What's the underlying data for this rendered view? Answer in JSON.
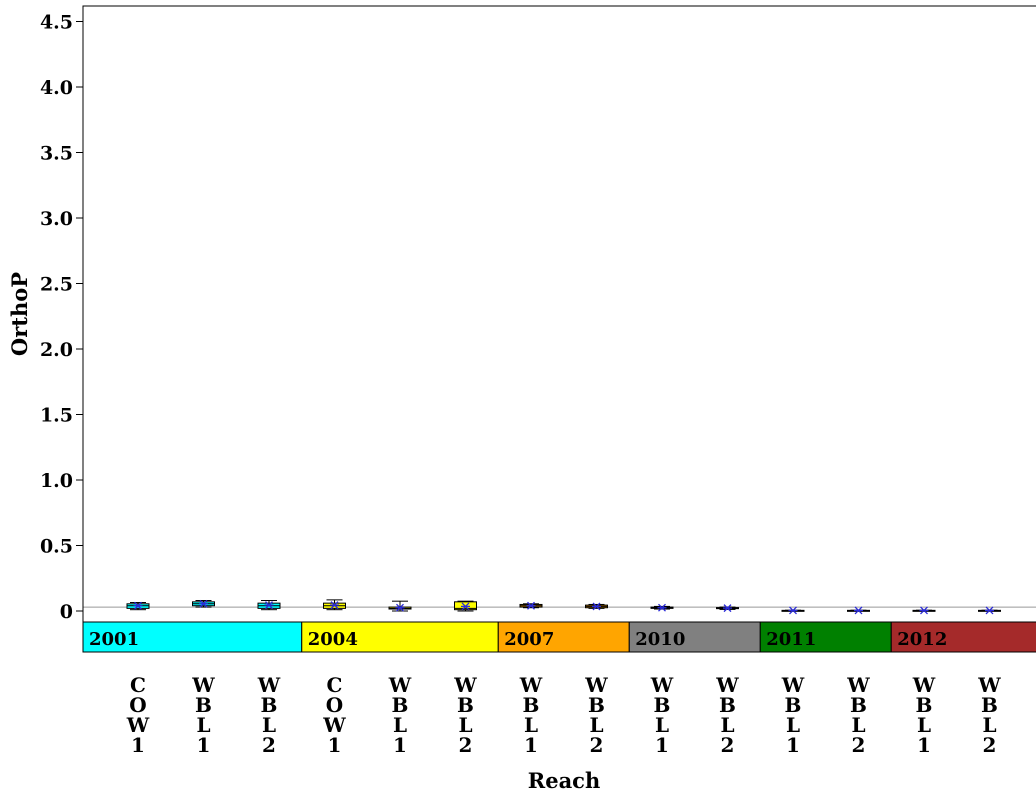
{
  "chart_data": {
    "type": "box",
    "ylabel": "OrthoP",
    "xlabel": "Reach",
    "ylim": [
      -0.3,
      4.6
    ],
    "y_ticks": [
      "4.5",
      "4.0",
      "3.5",
      "3.0",
      "2.5",
      "2.0",
      "1.5",
      "1.0",
      "0.5",
      "0"
    ],
    "y_tick_values": [
      4.5,
      4.0,
      3.5,
      3.0,
      2.5,
      2.0,
      1.5,
      1.0,
      0.5,
      0.0
    ],
    "reference_line": 0.03,
    "categories": [
      "COW1",
      "WBL1",
      "WBL2",
      "COW1",
      "WBL1",
      "WBL2",
      "WBL1",
      "WBL2",
      "WBL1",
      "WBL2",
      "WBL1",
      "WBL2",
      "WBL1",
      "WBL2"
    ],
    "groups": [
      {
        "year": "2001",
        "color": "#00ffff",
        "count": 3
      },
      {
        "year": "2004",
        "color": "#ffff00",
        "count": 3
      },
      {
        "year": "2007",
        "color": "#ffa500",
        "count": 2
      },
      {
        "year": "2010",
        "color": "#808080",
        "count": 2
      },
      {
        "year": "2011",
        "color": "#008000",
        "count": 2
      },
      {
        "year": "2012",
        "color": "#a52a2a",
        "count": 2
      }
    ],
    "boxes": [
      {
        "min": 0.01,
        "q1": 0.02,
        "median": 0.04,
        "q3": 0.055,
        "max": 0.065,
        "mean": 0.04
      },
      {
        "min": 0.03,
        "q1": 0.04,
        "median": 0.055,
        "q3": 0.07,
        "max": 0.08,
        "mean": 0.055
      },
      {
        "min": 0.01,
        "q1": 0.02,
        "median": 0.04,
        "q3": 0.06,
        "max": 0.08,
        "mean": 0.045
      },
      {
        "min": 0.01,
        "q1": 0.02,
        "median": 0.04,
        "q3": 0.06,
        "max": 0.085,
        "mean": 0.045
      },
      {
        "min": 0.0,
        "q1": 0.015,
        "median": 0.02,
        "q3": 0.03,
        "max": 0.075,
        "mean": 0.025
      },
      {
        "min": 0.0,
        "q1": 0.01,
        "median": 0.02,
        "q3": 0.07,
        "max": 0.075,
        "mean": 0.035
      },
      {
        "min": 0.025,
        "q1": 0.03,
        "median": 0.04,
        "q3": 0.05,
        "max": 0.055,
        "mean": 0.04
      },
      {
        "min": 0.02,
        "q1": 0.025,
        "median": 0.035,
        "q3": 0.045,
        "max": 0.05,
        "mean": 0.035
      },
      {
        "min": 0.015,
        "q1": 0.02,
        "median": 0.025,
        "q3": 0.03,
        "max": 0.035,
        "mean": 0.025
      },
      {
        "min": 0.012,
        "q1": 0.018,
        "median": 0.022,
        "q3": 0.026,
        "max": 0.03,
        "mean": 0.022
      },
      {
        "min": 0.002,
        "q1": 0.003,
        "median": 0.004,
        "q3": 0.005,
        "max": 0.006,
        "mean": 0.004
      },
      {
        "min": 0.002,
        "q1": 0.003,
        "median": 0.004,
        "q3": 0.005,
        "max": 0.006,
        "mean": 0.004
      },
      {
        "min": 0.002,
        "q1": 0.003,
        "median": 0.004,
        "q3": 0.005,
        "max": 0.006,
        "mean": 0.004
      },
      {
        "min": 0.002,
        "q1": 0.003,
        "median": 0.004,
        "q3": 0.005,
        "max": 0.006,
        "mean": 0.004
      }
    ],
    "colors": {
      "mean_marker": "#2b2bd8",
      "reference_line": "#999999",
      "axis": "#000000"
    }
  }
}
